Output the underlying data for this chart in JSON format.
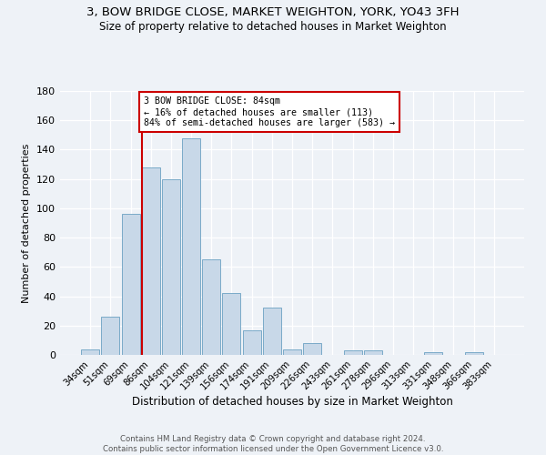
{
  "title1": "3, BOW BRIDGE CLOSE, MARKET WEIGHTON, YORK, YO43 3FH",
  "title2": "Size of property relative to detached houses in Market Weighton",
  "xlabel": "Distribution of detached houses by size in Market Weighton",
  "ylabel": "Number of detached properties",
  "bar_color": "#c8d8e8",
  "bar_edge_color": "#7aaac8",
  "categories": [
    "34sqm",
    "51sqm",
    "69sqm",
    "86sqm",
    "104sqm",
    "121sqm",
    "139sqm",
    "156sqm",
    "174sqm",
    "191sqm",
    "209sqm",
    "226sqm",
    "243sqm",
    "261sqm",
    "278sqm",
    "296sqm",
    "313sqm",
    "331sqm",
    "348sqm",
    "366sqm",
    "383sqm"
  ],
  "values": [
    4,
    26,
    96,
    128,
    120,
    148,
    65,
    42,
    17,
    32,
    4,
    8,
    0,
    3,
    3,
    0,
    0,
    2,
    0,
    2,
    0
  ],
  "property_line_bin": 3,
  "annotation_line1": "3 BOW BRIDGE CLOSE: 84sqm",
  "annotation_line2": "← 16% of detached houses are smaller (113)",
  "annotation_line3": "84% of semi-detached houses are larger (583) →",
  "annotation_box_color": "#ffffff",
  "annotation_box_edge": "#cc0000",
  "red_line_color": "#cc0000",
  "footer1": "Contains HM Land Registry data © Crown copyright and database right 2024.",
  "footer2": "Contains public sector information licensed under the Open Government Licence v3.0.",
  "background_color": "#eef2f7",
  "ylim": [
    0,
    180
  ],
  "yticks": [
    0,
    20,
    40,
    60,
    80,
    100,
    120,
    140,
    160,
    180
  ]
}
